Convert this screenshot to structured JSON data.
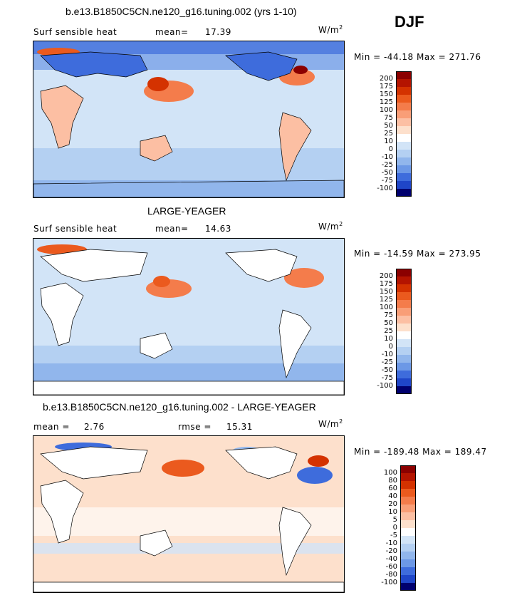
{
  "season": "DJF",
  "panels": [
    {
      "title": "b.e13.B1850C5CN.ne120_g16.tuning.002 (yrs 1-10)",
      "left_label": "Surf sensible heat",
      "stat1_label": "mean=",
      "stat1_value": "17.39",
      "stat2_label": "",
      "stat2_value": "",
      "units": "W/m",
      "units_exp": "2",
      "minmax": "Min = -44.18 Max = 271.76",
      "levels": [
        "200",
        "175",
        "150",
        "125",
        "100",
        "75",
        "50",
        "25",
        "10",
        "0",
        "-10",
        "-25",
        "-50",
        "-75",
        "-100"
      ],
      "colors": [
        "#8b0000",
        "#b41400",
        "#d43200",
        "#eb5a1e",
        "#f47c4b",
        "#f99e77",
        "#fcbfa3",
        "#fde0cc",
        "#ffffff",
        "#d2e4f7",
        "#b4d0f2",
        "#91b6ec",
        "#6c98e6",
        "#3e6cdc",
        "#1f46c8",
        "#0a1e9a",
        "#00006e"
      ]
    },
    {
      "title": "LARGE-YEAGER",
      "left_label": "Surf sensible heat",
      "stat1_label": "mean=",
      "stat1_value": "14.63",
      "stat2_label": "",
      "stat2_value": "",
      "units": "W/m",
      "units_exp": "2",
      "minmax": "Min = -14.59 Max = 273.95",
      "levels": [
        "200",
        "175",
        "150",
        "125",
        "100",
        "75",
        "50",
        "25",
        "10",
        "0",
        "-10",
        "-25",
        "-50",
        "-75",
        "-100"
      ],
      "colors": [
        "#8b0000",
        "#b41400",
        "#d43200",
        "#eb5a1e",
        "#f47c4b",
        "#f99e77",
        "#fcbfa3",
        "#fde0cc",
        "#ffffff",
        "#d2e4f7",
        "#b4d0f2",
        "#91b6ec",
        "#6c98e6",
        "#3e6cdc",
        "#1f46c8",
        "#0a1e9a",
        "#00006e"
      ]
    },
    {
      "title": "b.e13.B1850C5CN.ne120_g16.tuning.002 - LARGE-YEAGER",
      "left_label": "mean =",
      "stat1_label": "2.76",
      "stat1_value": "",
      "stat2_label": "rmse =",
      "stat2_value": "15.31",
      "units": "W/m",
      "units_exp": "2",
      "minmax": "Min = -189.48 Max = 189.47",
      "levels": [
        "100",
        "80",
        "60",
        "40",
        "20",
        "10",
        "5",
        "0",
        "-5",
        "-10",
        "-20",
        "-40",
        "-60",
        "-80",
        "-100"
      ],
      "colors": [
        "#8b0000",
        "#b41400",
        "#d43200",
        "#eb5a1e",
        "#f47c4b",
        "#f99e77",
        "#fcbfa3",
        "#fde0cc",
        "#ffffff",
        "#d2e4f7",
        "#b4d0f2",
        "#91b6ec",
        "#6c98e6",
        "#3e6cdc",
        "#1f46c8",
        "#0a1e9a",
        "#00006e"
      ]
    }
  ]
}
